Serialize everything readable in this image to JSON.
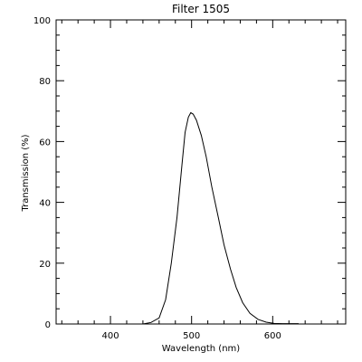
{
  "chart_data": {
    "type": "line",
    "title": "Filter 1505",
    "xlabel": "Wavelength (nm)",
    "ylabel": "Transmission (%)",
    "xlim": [
      333,
      690
    ],
    "ylim": [
      0,
      100
    ],
    "x_ticks": [
      400,
      500,
      600
    ],
    "y_ticks": [
      0,
      20,
      40,
      60,
      80,
      100
    ],
    "x_tick_labels": [
      "400",
      "500",
      "600"
    ],
    "y_tick_labels": [
      "0",
      "20",
      "40",
      "60",
      "80",
      "100"
    ],
    "grid": false,
    "series": [
      {
        "x": [
          440,
          450,
          460,
          468,
          475,
          482,
          488,
          492,
          496,
          499,
          502,
          506,
          512,
          518,
          525,
          533,
          540,
          548,
          555,
          563,
          572,
          582,
          592,
          602,
          612,
          622,
          632
        ],
        "y": [
          0,
          0.5,
          2,
          8,
          20,
          35,
          52,
          63,
          68,
          69.5,
          69,
          67,
          62,
          55,
          45,
          35,
          26,
          18,
          12,
          7,
          3.5,
          1.5,
          0.6,
          0.2,
          0.1,
          0.1,
          0.1
        ]
      }
    ],
    "colors": {
      "line": "#000000",
      "axis": "#000000",
      "background": "#ffffff"
    }
  }
}
